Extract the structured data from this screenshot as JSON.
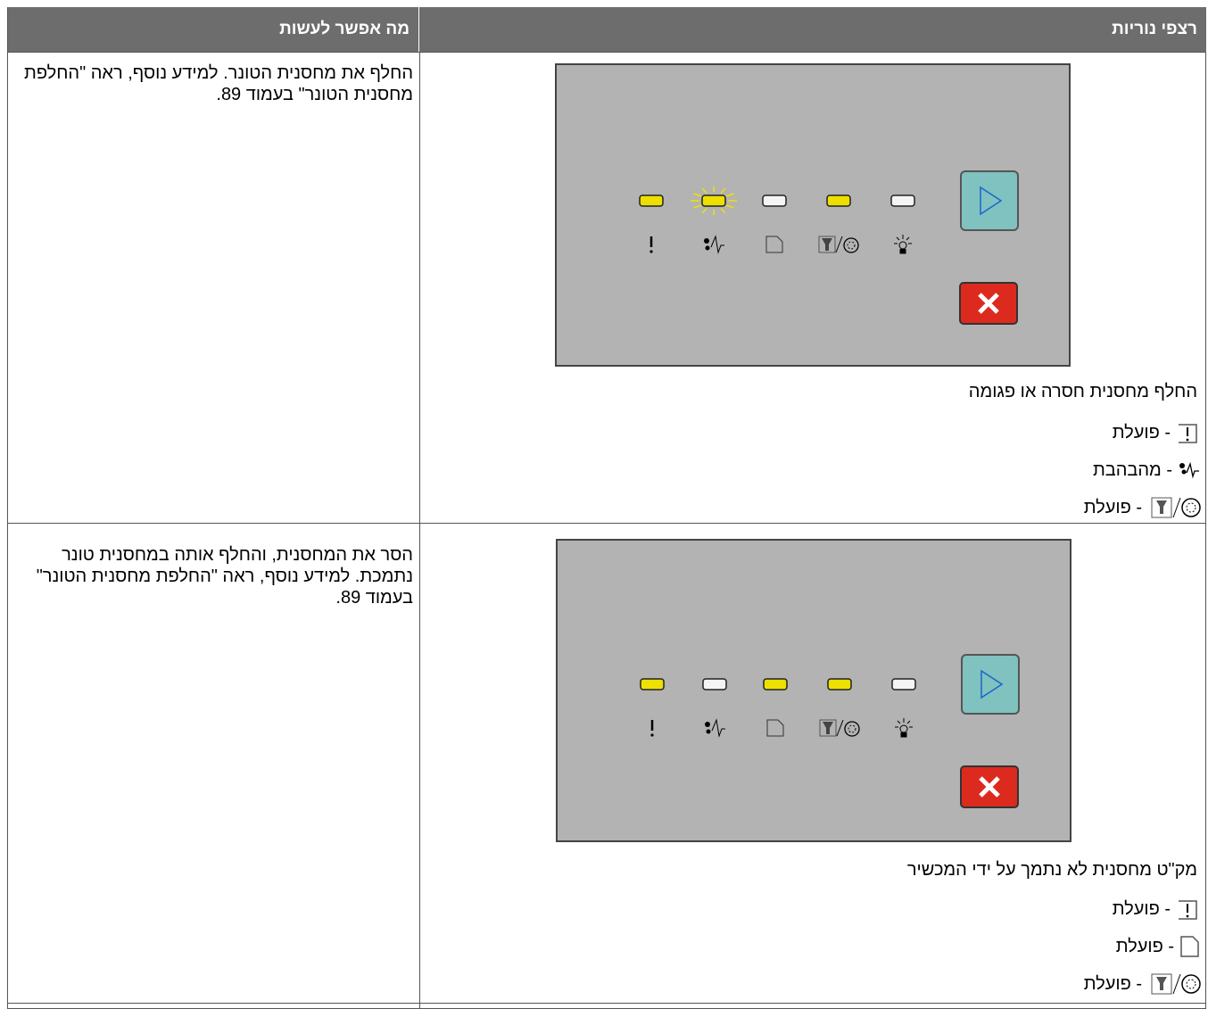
{
  "header": {
    "columns": [
      "רצפי נוריות",
      "מה אפשר לעשות"
    ]
  },
  "rows": [
    {
      "caption": "החלף מחסנית חסרה או פגומה",
      "items": [
        "- פועלת",
        "- מהבהבת",
        "- פועלת"
      ],
      "action": "החלף את מחסנית הטונר. למידע נוסף, ראה \"החלפת מחסנית הטונר\" בעמוד 89."
    },
    {
      "caption": "מק\"ט מחסנית לא נתמך על ידי המכשיר",
      "items": [
        "- פועלת",
        "- פועלת",
        "- פועלת"
      ],
      "action": "הסר את המחסנית, והחלף אותה במחסנית טונר נתמכת. למידע נוסף, ראה \"החלפת מחסנית הטונר\" בעמוד 89."
    }
  ]
}
